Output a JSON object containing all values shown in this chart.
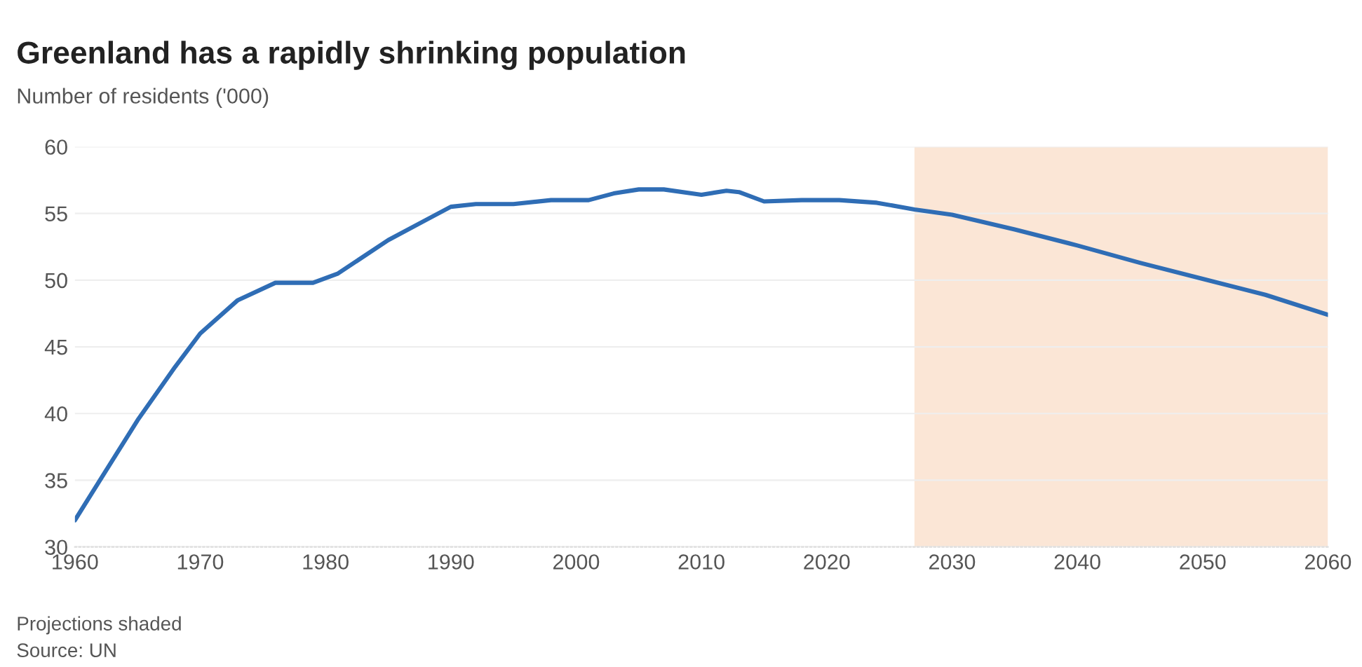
{
  "chart_data": {
    "type": "line",
    "title": "Greenland has a rapidly shrinking population",
    "subtitle": "Number of residents ('000)",
    "x": [
      1960,
      1962,
      1965,
      1968,
      1970,
      1973,
      1976,
      1979,
      1981,
      1985,
      1988,
      1990,
      1992,
      1995,
      1998,
      2001,
      2003,
      2005,
      2007,
      2010,
      2012,
      2013,
      2015,
      2018,
      2021,
      2024,
      2027,
      2030,
      2035,
      2040,
      2045,
      2050,
      2055,
      2060
    ],
    "series": [
      {
        "color": "#2f6db5",
        "values": [
          32.0,
          35.0,
          39.5,
          43.5,
          46.0,
          48.5,
          49.8,
          49.8,
          50.5,
          53.0,
          54.5,
          55.5,
          55.7,
          55.7,
          56.0,
          56.0,
          56.5,
          56.8,
          56.8,
          56.4,
          56.7,
          56.6,
          55.9,
          56.0,
          56.0,
          55.8,
          55.3,
          54.9,
          53.8,
          52.6,
          51.3,
          50.1,
          48.9,
          47.4
        ]
      }
    ],
    "xlim": [
      1960,
      2060
    ],
    "xticks": [
      1960,
      1970,
      1980,
      1990,
      2000,
      2010,
      2020,
      2030,
      2040,
      2050,
      2060
    ],
    "ylim": [
      30,
      60
    ],
    "yticks": [
      30,
      35,
      40,
      45,
      50,
      55,
      60
    ],
    "bands": [
      {
        "axis": "x",
        "from": 2027,
        "to": 2060,
        "color": "#fbe6d6"
      }
    ],
    "grid": "y",
    "legend": false,
    "annotations": [
      "Projections shaded",
      "Source: UN"
    ]
  }
}
